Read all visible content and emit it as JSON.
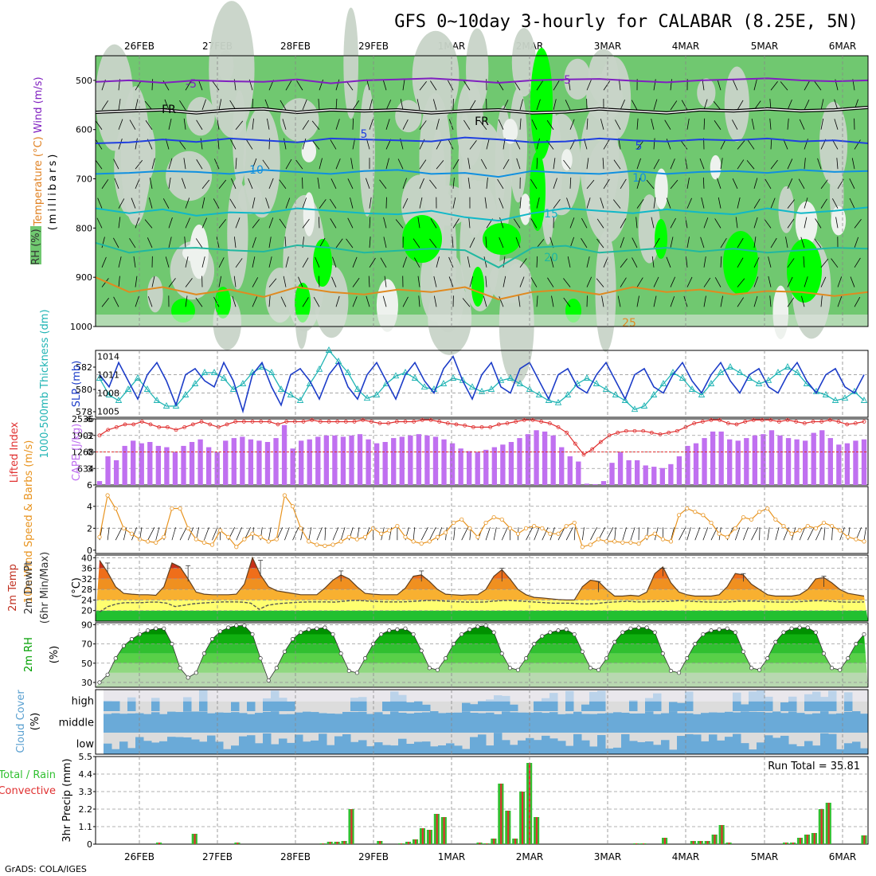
{
  "title": "GFS 0~10day 3-hourly for CALABAR (8.25E, 5N)",
  "credit": "GrADS: COLA/IGES",
  "day_labels": [
    "26FEB",
    "27FEB",
    "28FEB",
    "29FEB",
    "1MAR",
    "2MAR",
    "3MAR",
    "4MAR",
    "5MAR",
    "6MAR"
  ],
  "colors": {
    "rh_light": "#c8d4c8",
    "rh_green": "#70c870",
    "rh_bright": "#00ff00",
    "slp": "#1c3cc8",
    "thickness": "#20b4b4",
    "lifted_index": "#e03030",
    "cape": "#c070f0",
    "wind": "#e89420",
    "rh2m": "#00a000",
    "cloud": "#6aaad8",
    "cloud_bg": "#dcdcdc",
    "total_precip": "#30c030",
    "convective": "#e03030"
  },
  "chart_data": [
    {
      "type": "heatmap",
      "name": "upper-air",
      "y_axis_label": "(millibars)",
      "legend": [
        "RH (%)",
        "Temperature (°C)",
        "Wind (m/s)"
      ],
      "yticks": [
        500,
        600,
        700,
        800,
        900,
        1000
      ],
      "ylim": [
        450,
        1000
      ],
      "temperature_contours": [
        {
          "label": "-5",
          "levels": [
            503,
            500,
            505,
            500,
            502,
            503,
            498,
            506,
            500,
            498,
            496,
            500,
            505,
            500,
            498,
            497,
            501,
            504,
            500,
            498,
            496,
            500,
            502,
            500
          ]
        },
        {
          "label": "FR",
          "levels": [
            565,
            562,
            560,
            566,
            560,
            558,
            565,
            560,
            562,
            560,
            566,
            562,
            560,
            566,
            564,
            558,
            562,
            566,
            560,
            562,
            558,
            562,
            560,
            555
          ]
        },
        {
          "label": "5",
          "levels": [
            628,
            626,
            620,
            625,
            618,
            622,
            626,
            618,
            620,
            622,
            624,
            616,
            620,
            626,
            624,
            618,
            622,
            624,
            620,
            622,
            618,
            624,
            622,
            628
          ]
        },
        {
          "label": "10",
          "levels": [
            690,
            688,
            684,
            686,
            690,
            682,
            686,
            690,
            684,
            682,
            690,
            688,
            696,
            684,
            688,
            690,
            684,
            690,
            686,
            684,
            688,
            682,
            686,
            684
          ]
        },
        {
          "label": "15",
          "levels": [
            760,
            770,
            762,
            775,
            768,
            770,
            760,
            765,
            770,
            772,
            765,
            778,
            785,
            770,
            760,
            765,
            770,
            762,
            768,
            772,
            760,
            770,
            765,
            758
          ]
        },
        {
          "label": "20",
          "levels": [
            830,
            850,
            842,
            840,
            845,
            848,
            835,
            840,
            850,
            846,
            842,
            845,
            880,
            840,
            836,
            850,
            845,
            840,
            848,
            842,
            850,
            845,
            840,
            842
          ]
        },
        {
          "label": "25",
          "levels": [
            900,
            930,
            920,
            935,
            925,
            940,
            920,
            930,
            935,
            925,
            930,
            920,
            945,
            930,
            925,
            935,
            920,
            930,
            925,
            935,
            928,
            930,
            938,
            930
          ]
        }
      ],
      "contour_label_positions": [
        "-5 near 27FEB",
        "FR near 27FEB and 1MAR",
        "5 near 29FEB and 2MAR",
        "10 near 28FEB and 3MAR",
        "15 near 2MAR",
        "20 near 2MAR",
        "25 near 3MAR"
      ]
    },
    {
      "type": "line",
      "name": "slp-thickness",
      "series": [
        {
          "name": "SLP (mb)",
          "axis": "right",
          "ylim": [
            1005,
            1014
          ],
          "yticks": [
            1005,
            1008,
            1011,
            1014
          ],
          "values": [
            1011,
            1009,
            1013,
            1010,
            1007,
            1011,
            1013,
            1010,
            1006,
            1011,
            1012,
            1010,
            1009,
            1013,
            1010,
            1005,
            1011,
            1013,
            1009,
            1006,
            1011,
            1012,
            1010,
            1007,
            1011,
            1013,
            1009,
            1007,
            1011,
            1013,
            1010,
            1007,
            1011,
            1013,
            1010,
            1008,
            1012,
            1014,
            1010,
            1007,
            1011,
            1013,
            1009,
            1008,
            1012,
            1013,
            1010,
            1007,
            1011,
            1012,
            1009,
            1008,
            1011,
            1013,
            1010,
            1007,
            1011,
            1012,
            1009,
            1008,
            1011,
            1013,
            1010,
            1008,
            1011,
            1013,
            1010,
            1008,
            1011,
            1012,
            1009,
            1008,
            1011,
            1013,
            1010,
            1008,
            1011,
            1012,
            1009,
            1008,
            1011
          ]
        },
        {
          "name": "1000-500mb Thickness (dm)",
          "axis": "left",
          "ylim": [
            577.5,
            583.5
          ],
          "yticks": [
            578,
            580,
            582
          ],
          "values": [
            581,
            579.5,
            579,
            580,
            581,
            580,
            579,
            578.5,
            578.5,
            579.5,
            580.5,
            581.5,
            581.5,
            581,
            580,
            580.5,
            581.5,
            582,
            581.5,
            580,
            579.5,
            579,
            580.5,
            581.8,
            583.5,
            582.5,
            581.5,
            580,
            579.2,
            579.5,
            580.5,
            581.2,
            581.5,
            581,
            580.2,
            580,
            580.5,
            581,
            580.8,
            580.2,
            579.8,
            580,
            580.8,
            581,
            580.5,
            580,
            579.5,
            579,
            578.8,
            579.5,
            580.5,
            581,
            580.5,
            580,
            579.5,
            579,
            578.2,
            578.5,
            579.5,
            580.5,
            581.5,
            581,
            580,
            579.5,
            580.5,
            581.5,
            582,
            581.5,
            581,
            580.5,
            580.8,
            581.5,
            582,
            581.5,
            580.5,
            579.8,
            579.5,
            579,
            579.2,
            579.8,
            579
          ]
        }
      ]
    },
    {
      "type": "bar",
      "name": "cape-lifted-index",
      "series": [
        {
          "name": "CAPE (J/kg)",
          "axis": "right",
          "ylim": [
            0,
            2536
          ],
          "yticks": [
            634,
            1268,
            1902,
            2536
          ],
          "values": [
            150,
            1100,
            950,
            1500,
            1700,
            1600,
            1650,
            1500,
            1450,
            1250,
            1500,
            1650,
            1750,
            1450,
            1250,
            1700,
            1800,
            1850,
            1750,
            1700,
            1650,
            1800,
            2300,
            1400,
            1700,
            1750,
            1850,
            1900,
            1900,
            1850,
            1900,
            1950,
            1750,
            1600,
            1650,
            1800,
            1850,
            1900,
            1950,
            1900,
            1850,
            1750,
            1600,
            1400,
            1300,
            1250,
            1350,
            1450,
            1550,
            1650,
            1800,
            1950,
            2100,
            2050,
            1900,
            1450,
            1100,
            900,
            50,
            30,
            150,
            850,
            1250,
            950,
            950,
            750,
            700,
            650,
            800,
            1100,
            1500,
            1600,
            1800,
            2050,
            2050,
            1750,
            1700,
            1800,
            1900,
            1950,
            2100,
            1900,
            1800,
            1750,
            1700,
            2000,
            2100,
            1800,
            1550,
            1600,
            1700,
            1750
          ]
        },
        {
          "name": "Lifted Index",
          "axis": "left",
          "ylim": [
            6,
            -6
          ],
          "yticks": [
            -6,
            -3,
            0,
            3,
            6
          ],
          "values": [
            -3,
            -4,
            -4.5,
            -5,
            -5,
            -5.5,
            -5,
            -4.5,
            -4.5,
            -4,
            -4.5,
            -5,
            -5.5,
            -5,
            -4.5,
            -5,
            -5.5,
            -5.5,
            -5.5,
            -5.5,
            -5.5,
            -5,
            -5.5,
            -5.5,
            -5.5,
            -5.8,
            -5.5,
            -5.5,
            -5.5,
            -5.5,
            -5.5,
            -5.8,
            -5.5,
            -5.2,
            -5.2,
            -5.5,
            -5.5,
            -5.5,
            -5.8,
            -5.8,
            -5.5,
            -5.2,
            -5,
            -4.8,
            -4.5,
            -4.5,
            -4.5,
            -5,
            -5.2,
            -5.5,
            -5.8,
            -5.8,
            -5.5,
            -5.2,
            -4.5,
            -3.5,
            -1.5,
            0.5,
            -0.5,
            -1.8,
            -3,
            -3.5,
            -3.8,
            -3.8,
            -3.8,
            -3.5,
            -3.2,
            -3.5,
            -3.8,
            -4.5,
            -5.2,
            -5.5,
            -5.8,
            -5.8,
            -5.2,
            -5,
            -5.5,
            -5.8,
            -5.8,
            -5.8,
            -5.5,
            -5.8,
            -5.5,
            -5.2,
            -5.5,
            -5.5,
            -5.8,
            -5.5,
            -5,
            -5.2,
            -5.5
          ]
        }
      ]
    },
    {
      "type": "line",
      "name": "10m-wind",
      "ylabel": "10m Wind Speed & Barbs (m/s)",
      "ylim": [
        0,
        5.5
      ],
      "yticks": [
        0,
        2,
        4
      ],
      "values": [
        1.2,
        5,
        3.8,
        2,
        1.5,
        1,
        0.8,
        0.7,
        1.2,
        3.8,
        3.8,
        2,
        1,
        0.7,
        0.5,
        1.8,
        1.2,
        0.3,
        1,
        1.5,
        1.2,
        0.8,
        1,
        5,
        4,
        2,
        0.8,
        0.5,
        0.4,
        0.5,
        0.8,
        1.2,
        1,
        1.2,
        2,
        1.5,
        1.8,
        2.2,
        1.2,
        0.8,
        0.6,
        0.8,
        1.2,
        1.6,
        2.5,
        2.8,
        2,
        1.2,
        2.5,
        3,
        2.8,
        2,
        1.5,
        2,
        2.2,
        2,
        1.5,
        1.5,
        2.2,
        2.5,
        0.3,
        0.5,
        1,
        0.8,
        0.8,
        0.7,
        0.7,
        0.6,
        1.2,
        1.5,
        1,
        0.8,
        3.2,
        3.8,
        3.5,
        3.2,
        2.5,
        1.5,
        1.2,
        2,
        3,
        2.8,
        3.5,
        3.8,
        2.8,
        2.2,
        1.5,
        1.8,
        2.2,
        2,
        2.5,
        2.2,
        1.8,
        1.2,
        1,
        0.8
      ]
    },
    {
      "type": "area",
      "name": "2m-temp-dewpoint",
      "ylabel": "2m Temp 2m DewPt (6hr Min/Max) (°C)",
      "ylim": [
        16,
        40
      ],
      "yticks": [
        20,
        24,
        28,
        32,
        36,
        40
      ],
      "temperature": [
        39,
        34.5,
        29,
        26.5,
        26.2,
        26,
        26,
        25.8,
        29,
        38,
        36.5,
        32,
        27,
        26.2,
        26,
        26,
        26,
        26.2,
        30,
        40,
        33.5,
        29,
        27.5,
        27,
        26.5,
        26,
        26,
        26,
        28.5,
        31.5,
        33.5,
        32,
        29,
        26.5,
        26.2,
        26,
        26,
        26,
        28.5,
        33,
        33.5,
        31,
        28,
        26.2,
        26,
        25.8,
        26,
        26,
        28,
        33,
        35.5,
        32,
        28,
        26,
        25,
        24.8,
        24.5,
        24.2,
        24,
        24,
        29,
        31.5,
        31,
        28,
        25.5,
        25.5,
        25.8,
        25.5,
        27,
        34,
        36.5,
        30.5,
        27,
        26,
        25.5,
        25.5,
        25.5,
        26,
        29,
        34,
        33.5,
        30,
        28,
        26,
        25.5,
        25.5,
        25.5,
        26,
        28,
        32,
        32.5,
        30.5,
        28,
        26.5,
        26,
        25.5
      ],
      "dewpoint": [
        19.5,
        21.5,
        22.5,
        23,
        23,
        23,
        23.2,
        23.2,
        22.8,
        21.5,
        22,
        22.5,
        22.8,
        23,
        23.2,
        23.3,
        23.3,
        23.2,
        22.8,
        20.5,
        22,
        22.5,
        22.8,
        23,
        23.2,
        23.3,
        23.3,
        23.3,
        23.2,
        23.5,
        23.8,
        23.8,
        23.6,
        23.4,
        23.3,
        23.3,
        23.3,
        23.4,
        23.6,
        23.8,
        23.8,
        23.6,
        23.4,
        23.3,
        23.2,
        23.2,
        23.3,
        23.6,
        23.8,
        23.8,
        23.6,
        23.4,
        23.2,
        23,
        22.8,
        22.8,
        22.8,
        22.6,
        22.5,
        22.6,
        23,
        23.2,
        23.4,
        23.5,
        23.3,
        23.3,
        23.4,
        23.4,
        23.5,
        23.8,
        23.6,
        23.4,
        23.3,
        23.2,
        23.2,
        23.3,
        23.5,
        23.6,
        23.6,
        23.4,
        23.3,
        23.2,
        23.2,
        23.3,
        23.5,
        23.7,
        23.7,
        23.5,
        23.3,
        23.2,
        23.2,
        23.3
      ]
    },
    {
      "type": "area",
      "name": "2m-rh",
      "ylabel": "2m RH (%)",
      "ylim": [
        25,
        92
      ],
      "yticks": [
        30,
        50,
        70,
        90
      ],
      "values": [
        30,
        38,
        55,
        68,
        75,
        80,
        84,
        86,
        86,
        70,
        45,
        35,
        40,
        60,
        75,
        83,
        87,
        89,
        89,
        80,
        55,
        32,
        45,
        62,
        75,
        82,
        85,
        86,
        87,
        80,
        60,
        42,
        40,
        55,
        70,
        80,
        84,
        85,
        86,
        80,
        63,
        45,
        43,
        55,
        70,
        80,
        85,
        88,
        89,
        82,
        60,
        45,
        43,
        55,
        70,
        78,
        82,
        84,
        85,
        80,
        62,
        45,
        43,
        55,
        72,
        82,
        86,
        87,
        87,
        82,
        60,
        42,
        40,
        55,
        70,
        80,
        84,
        85,
        86,
        82,
        62,
        45,
        43,
        55,
        72,
        82,
        86,
        87,
        87,
        82,
        60,
        45,
        43,
        55,
        70,
        80
      ]
    },
    {
      "type": "heatmap",
      "name": "cloud-cover",
      "ylabel": "Cloud Cover (%)",
      "rows": [
        "high",
        "middle",
        "low"
      ]
    },
    {
      "type": "bar",
      "name": "precip",
      "ylabel": "3hr Precip (mm)",
      "legend": [
        "Total / Rain",
        "Convective"
      ],
      "ylim": [
        0,
        5.5
      ],
      "yticks": [
        0,
        1.1,
        2.2,
        3.3,
        4.4,
        5.5
      ],
      "annotation": "Run Total = 35.81",
      "values": [
        0,
        0,
        0,
        0,
        0,
        0,
        0,
        0,
        0.1,
        0,
        0,
        0,
        0,
        0.65,
        0,
        0,
        0,
        0,
        0,
        0.1,
        0,
        0,
        0,
        0,
        0,
        0,
        0,
        0,
        0,
        0,
        0,
        0.05,
        0.15,
        0.15,
        0.2,
        2.2,
        0,
        0,
        0,
        0.2,
        0,
        0,
        0.05,
        0.15,
        0.3,
        1.0,
        0.9,
        1.9,
        1.7,
        0,
        0,
        0,
        0,
        0.1,
        0.05,
        0.35,
        3.8,
        2.1,
        0.35,
        3.3,
        5.1,
        1.7,
        0,
        0,
        0,
        0,
        0,
        0,
        0,
        0,
        0,
        0,
        0,
        0,
        0,
        0.05,
        0.05,
        0,
        0,
        0.4,
        0,
        0,
        0,
        0.2,
        0.2,
        0.2,
        0.6,
        1.2,
        0.1,
        0,
        0,
        0,
        0,
        0,
        0,
        0,
        0.1,
        0.1,
        0.4,
        0.6,
        0.7,
        2.2,
        2.6,
        0,
        0,
        0,
        0,
        0.55
      ]
    }
  ]
}
